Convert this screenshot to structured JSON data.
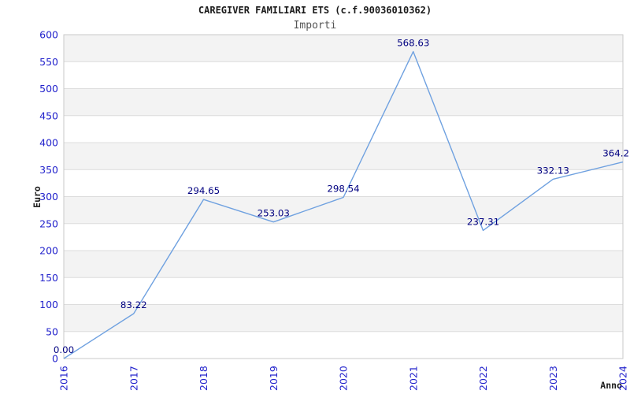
{
  "chart_data": {
    "type": "line",
    "title": "CAREGIVER FAMILIARI ETS (c.f.90036010362)",
    "subtitle": "Importi",
    "xlabel": "Anno",
    "ylabel": "Euro",
    "categories": [
      "2016",
      "2017",
      "2018",
      "2019",
      "2020",
      "2021",
      "2022",
      "2023",
      "2024"
    ],
    "values": [
      0.0,
      83.22,
      294.65,
      253.03,
      298.54,
      568.63,
      237.31,
      332.13,
      364.2
    ],
    "point_labels": [
      "0.00",
      "83.22",
      "294.65",
      "253.03",
      "298.54",
      "568.63",
      "237.31",
      "332.13",
      "364.2"
    ],
    "ylim": [
      0,
      600
    ],
    "y_tick_step": 50,
    "grid": "horizontal-only",
    "legend": "none",
    "plot_bands": "alternating gray/white every 50 starting gray at top",
    "colors": {
      "line": "#6fa1e0",
      "tick_labels": "#2323cc",
      "point_labels": "#000080",
      "band": "#f3f3f3",
      "gridline": "#dcdcdc",
      "plot_border": "#c9c9c9",
      "title": "#1a1a1a",
      "subtitle": "#555555"
    }
  }
}
